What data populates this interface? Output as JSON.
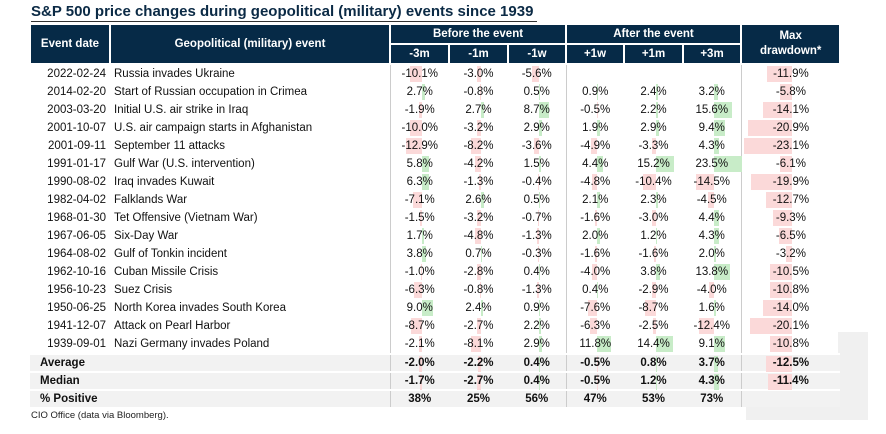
{
  "chart_data": {
    "type": "table",
    "title": "S&P 500 price changes during geopolitical (military) events since 1939",
    "headers": {
      "date": "Event date",
      "event": "Geopolitical (military) event",
      "before": "Before the event",
      "after": "After the event",
      "drawdown": "Max drawdown*",
      "periods": [
        "-3m",
        "-1m",
        "-1w",
        "+1w",
        "+1m",
        "+3m"
      ]
    },
    "rows": [
      {
        "date": "2022-02-24",
        "event": "Russia invades Ukraine",
        "values": [
          -10.1,
          -3.0,
          -5.6,
          null,
          null,
          null
        ],
        "drawdown": -11.9
      },
      {
        "date": "2014-02-20",
        "event": "Start of Russian occupation in Crimea",
        "values": [
          2.7,
          -0.8,
          0.5,
          0.9,
          2.4,
          3.2
        ],
        "drawdown": -5.8
      },
      {
        "date": "2003-03-20",
        "event": "Initial U.S. air strike in Iraq",
        "values": [
          -1.9,
          2.7,
          8.7,
          -0.5,
          2.2,
          15.6
        ],
        "drawdown": -14.1
      },
      {
        "date": "2001-10-07",
        "event": "U.S. air campaign starts in Afghanistan",
        "values": [
          -10.0,
          -3.2,
          2.9,
          1.9,
          2.9,
          9.4
        ],
        "drawdown": -20.9
      },
      {
        "date": "2001-09-11",
        "event": "September 11 attacks",
        "values": [
          -12.9,
          -8.2,
          -3.6,
          -4.9,
          -3.3,
          4.3
        ],
        "drawdown": -23.1
      },
      {
        "date": "1991-01-17",
        "event": "Gulf War (U.S. intervention)",
        "values": [
          5.8,
          -4.2,
          1.5,
          4.4,
          15.2,
          23.5
        ],
        "drawdown": -6.1
      },
      {
        "date": "1990-08-02",
        "event": "Iraq invades Kuwait",
        "values": [
          6.3,
          -1.3,
          -0.4,
          -4.8,
          -10.4,
          -14.5
        ],
        "drawdown": -19.9
      },
      {
        "date": "1982-04-02",
        "event": "Falklands War",
        "values": [
          -7.1,
          2.6,
          0.5,
          2.1,
          2.3,
          -4.5
        ],
        "drawdown": -12.7
      },
      {
        "date": "1968-01-30",
        "event": "Tet Offensive (Vietnam War)",
        "values": [
          -1.5,
          -3.2,
          -0.7,
          -1.6,
          -3.0,
          4.4
        ],
        "drawdown": -9.3
      },
      {
        "date": "1967-06-05",
        "event": "Six-Day War",
        "values": [
          1.7,
          -4.8,
          -1.3,
          2.0,
          1.2,
          4.3
        ],
        "drawdown": -6.5
      },
      {
        "date": "1964-08-02",
        "event": "Gulf of Tonkin incident",
        "values": [
          3.8,
          0.7,
          -0.3,
          -1.6,
          -1.6,
          2.0
        ],
        "drawdown": -3.2
      },
      {
        "date": "1962-10-16",
        "event": "Cuban Missile Crisis",
        "values": [
          -1.0,
          -2.8,
          0.4,
          -4.0,
          3.8,
          13.8
        ],
        "drawdown": -10.5
      },
      {
        "date": "1956-10-23",
        "event": "Suez Crisis",
        "values": [
          -6.3,
          -0.8,
          -1.3,
          0.4,
          -2.9,
          -4.0
        ],
        "drawdown": -10.8
      },
      {
        "date": "1950-06-25",
        "event": "North Korea invades South Korea",
        "values": [
          9.0,
          2.4,
          0.9,
          -7.6,
          -8.7,
          1.6
        ],
        "drawdown": -14.0
      },
      {
        "date": "1941-12-07",
        "event": "Attack on Pearl Harbor",
        "values": [
          -8.7,
          -2.7,
          2.2,
          -6.3,
          -2.5,
          -12.4
        ],
        "drawdown": -20.1
      },
      {
        "date": "1939-09-01",
        "event": "Nazi Germany invades Poland",
        "values": [
          -2.1,
          -8.1,
          2.9,
          11.8,
          14.4,
          9.1
        ],
        "drawdown": -10.8
      }
    ],
    "summary": [
      {
        "label": "Average",
        "values": [
          -2.0,
          -2.2,
          0.4,
          -0.5,
          0.8,
          3.7
        ],
        "drawdown": -12.5
      },
      {
        "label": "Median",
        "values": [
          -1.7,
          -2.7,
          0.4,
          -0.5,
          1.2,
          4.3
        ],
        "drawdown": -11.4
      },
      {
        "label": "% Positive",
        "values": [
          "38%",
          "25%",
          "56%",
          "47%",
          "53%",
          "73%"
        ],
        "drawdown": null
      }
    ],
    "colors": {
      "header": "#062a47",
      "positive": "#c8ecc8",
      "negative": "#fbd9d9"
    }
  },
  "footnote": "CIO Office (data via Bloomberg)."
}
